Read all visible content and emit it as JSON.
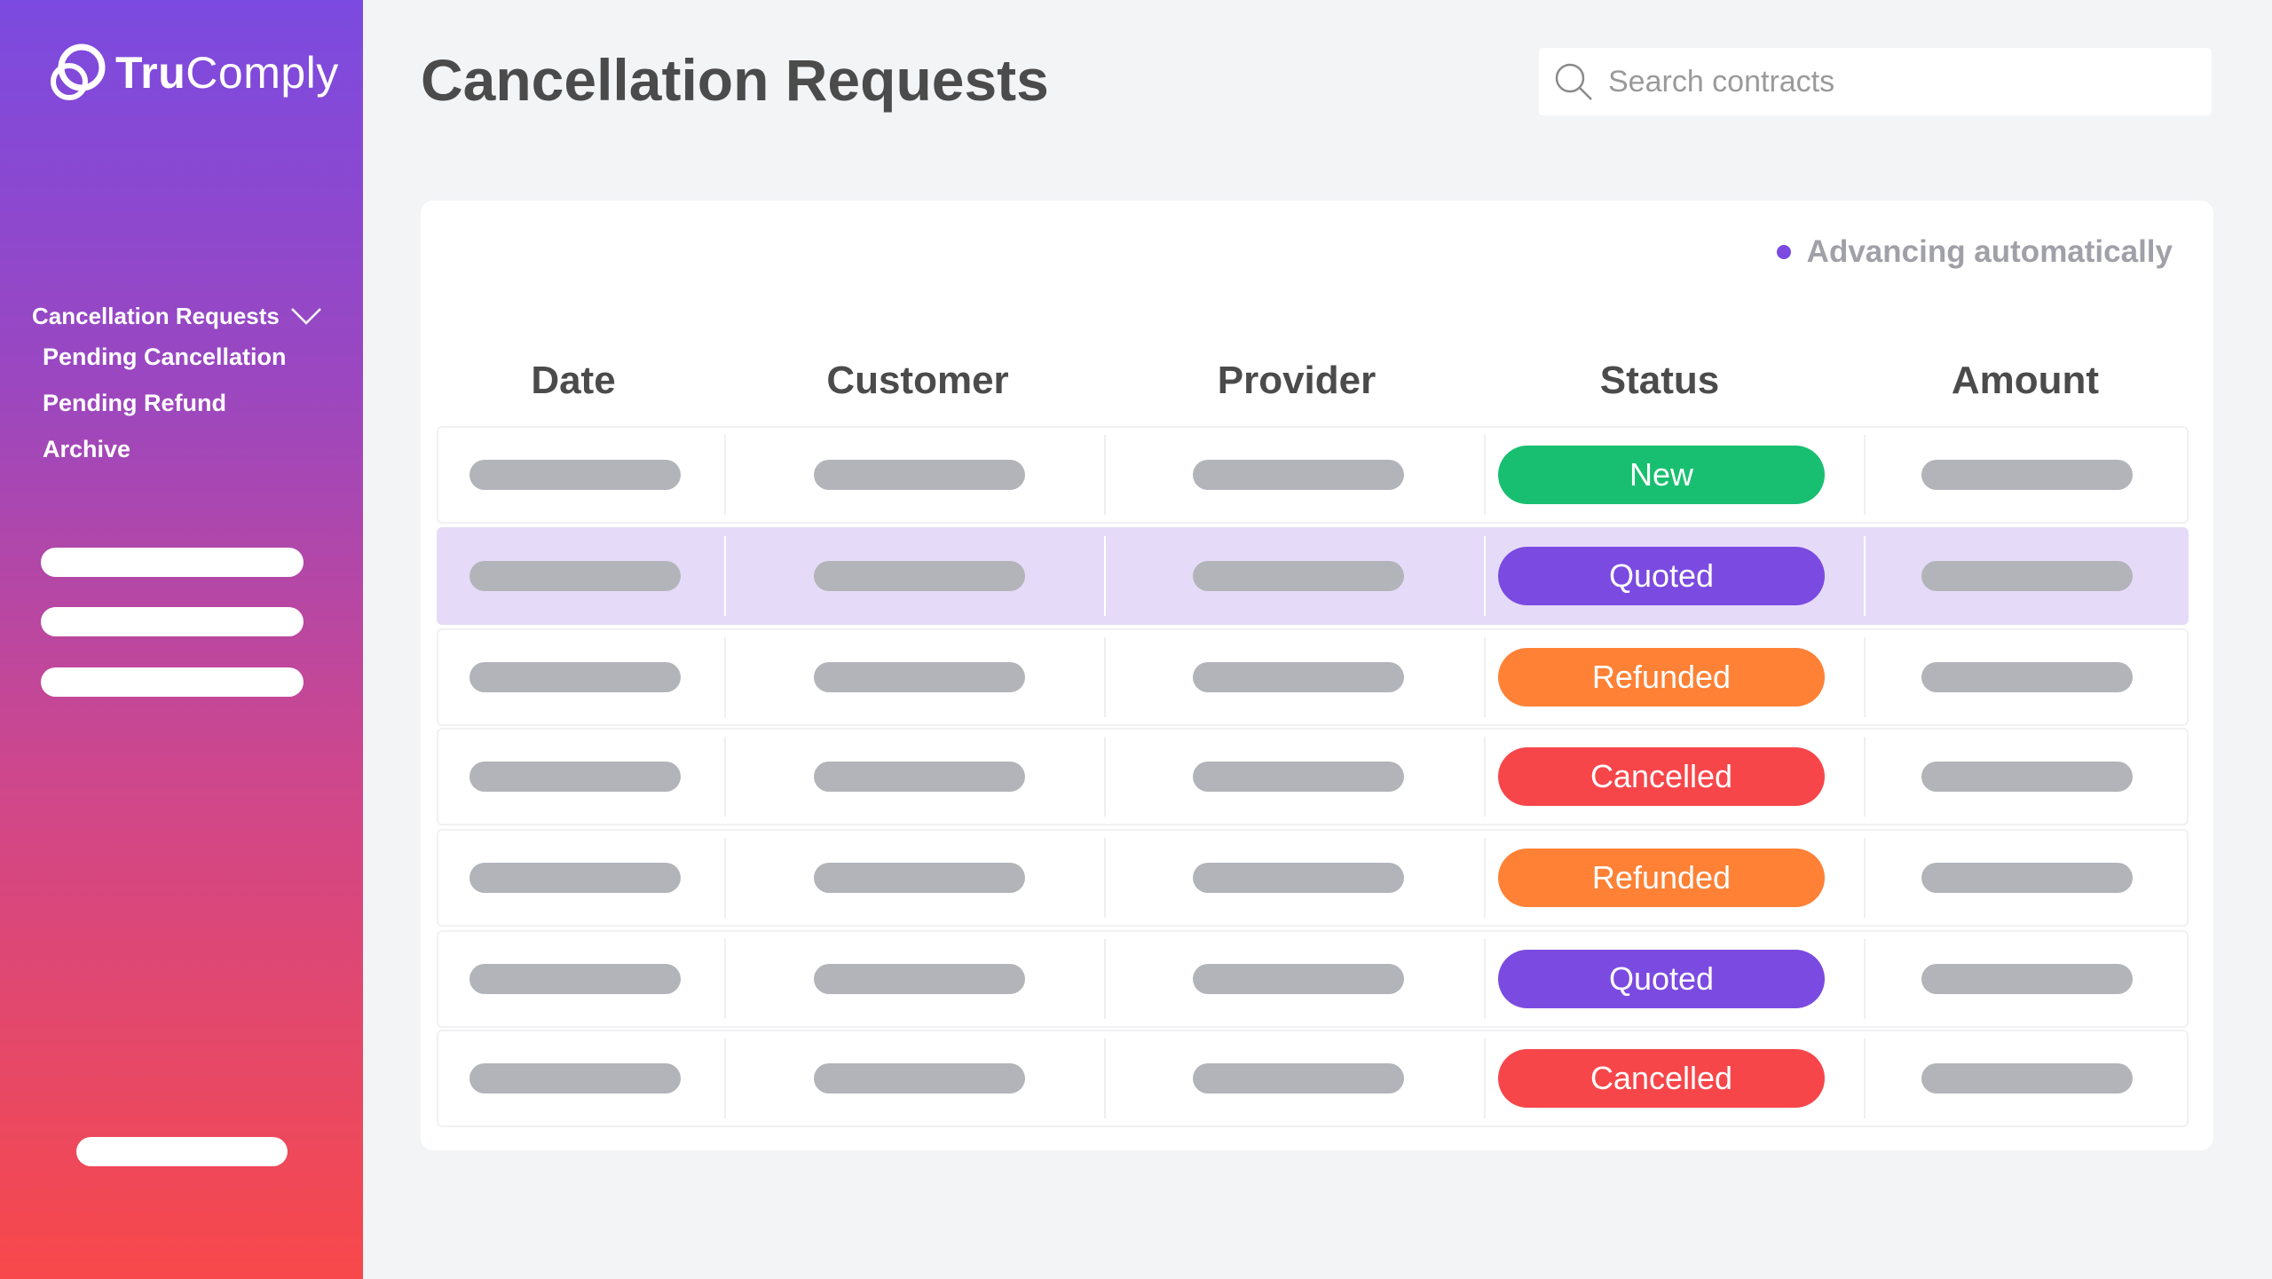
{
  "app": {
    "logo_prefix": "Tru",
    "logo_suffix": "Comply"
  },
  "sidebar": {
    "group_label": "Cancellation Requests",
    "items": [
      {
        "label": "Pending Cancellation"
      },
      {
        "label": "Pending Refund"
      },
      {
        "label": "Archive"
      }
    ]
  },
  "header": {
    "title": "Cancellation Requests"
  },
  "search": {
    "placeholder": "Search contracts"
  },
  "indicator": {
    "label": "Advancing automatically",
    "dot_color": "#7b4ae0"
  },
  "table": {
    "columns": [
      "Date",
      "Customer",
      "Provider",
      "Status",
      "Amount"
    ],
    "rows": [
      {
        "status": "New",
        "color": "#19bf71"
      },
      {
        "status": "Quoted",
        "color": "#7b4ae0"
      },
      {
        "status": "Refunded",
        "color": "#fe8135"
      },
      {
        "status": "Cancelled",
        "color": "#f7464a"
      },
      {
        "status": "Refunded",
        "color": "#fe8135"
      },
      {
        "status": "Quoted",
        "color": "#7b4ae0"
      },
      {
        "status": "Cancelled",
        "color": "#f7464a"
      }
    ],
    "selected_row": 1
  }
}
